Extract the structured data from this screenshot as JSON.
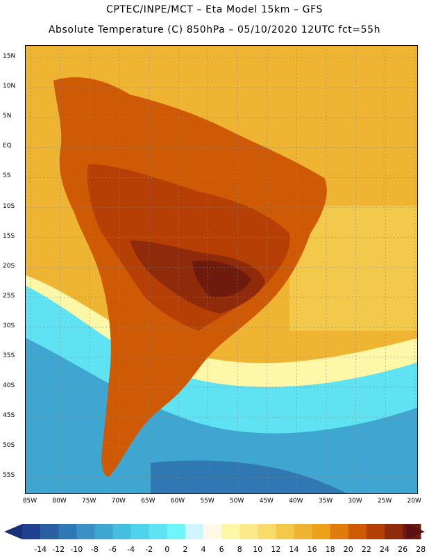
{
  "title_line1": "CPTEC/INPE/MCT –  Eta Model 15km – GFS",
  "title_line2": "Absolute Temperature (C) 850hPa – 05/10/2020 12UTC fct=55h",
  "lat_labels": [
    "15N",
    "10N",
    "5N",
    "EQ",
    "5S",
    "10S",
    "15S",
    "20S",
    "25S",
    "30S",
    "35S",
    "40S",
    "45S",
    "50S",
    "55S"
  ],
  "lon_labels": [
    "85W",
    "80W",
    "75W",
    "70W",
    "65W",
    "60W",
    "55W",
    "50W",
    "45W",
    "40W",
    "35W",
    "30W",
    "25W",
    "20W"
  ],
  "colorbar": {
    "labels": [
      "-14",
      "-12",
      "-10",
      "-8",
      "-6",
      "-4",
      "-2",
      "0",
      "2",
      "4",
      "6",
      "8",
      "10",
      "12",
      "14",
      "16",
      "18",
      "20",
      "22",
      "24",
      "26",
      "28"
    ],
    "colors": [
      "#1f3f8f",
      "#2a5fa0",
      "#2f78b3",
      "#3a8fc4",
      "#3fa6d2",
      "#45bfe0",
      "#4fd3ea",
      "#5fe3f2",
      "#6ff6fb",
      "#cff5ff",
      "#fff8e6",
      "#fff7a8",
      "#fde98a",
      "#f9db6a",
      "#f3c94c",
      "#efb532",
      "#eca218",
      "#e07c0e",
      "#cf5a06",
      "#b63f05",
      "#8f2a0a",
      "#6e1a0c"
    ],
    "left_arrow_color": "#1a2f7a",
    "right_arrow_color": "#5c0f12"
  },
  "map_colors": {
    "ocean_north": "#efb532",
    "ocean_mid": "#f3c94c",
    "pale_band": "#fff7a8",
    "cool_south": "#5fe3f2",
    "cold_south": "#3fa6d2",
    "deep_south": "#2f78b3",
    "continent_hot": "#cf5a06",
    "continent_hotter": "#b63f05",
    "continent_core": "#8f2a0a",
    "continent_hottest": "#6e1a0c",
    "grid": "#888888"
  },
  "icons": {
    "left_arrow": "triangle-left-icon",
    "right_arrow": "triangle-right-icon"
  }
}
